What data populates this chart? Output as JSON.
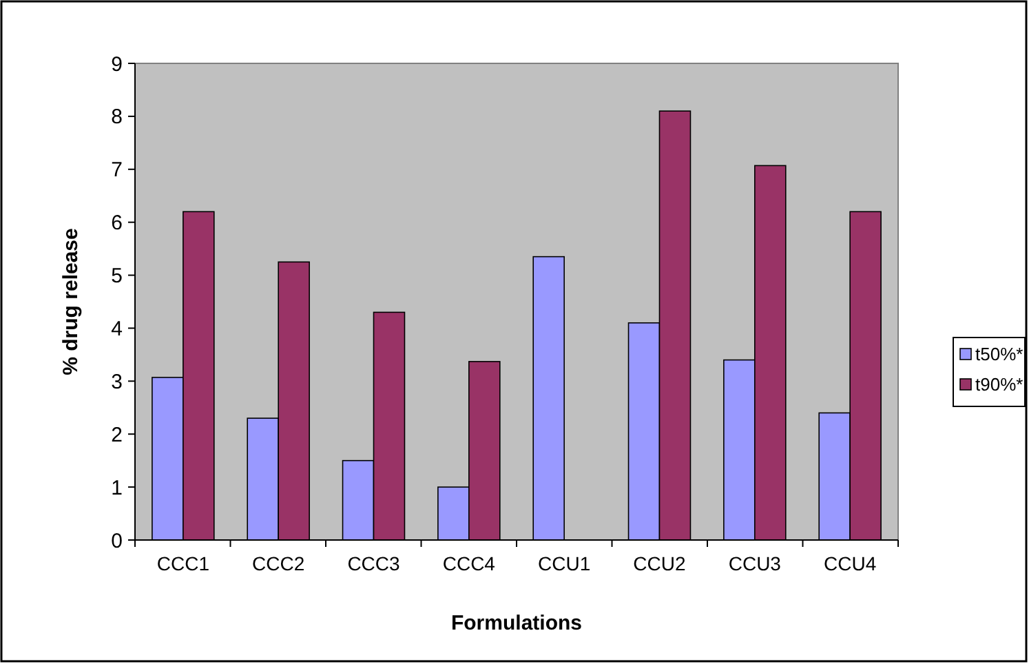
{
  "chart_data": {
    "type": "bar",
    "xlabel": "Formulations",
    "ylabel": "% drug release",
    "categories": [
      "CCC1",
      "CCC2",
      "CCC3",
      "CCC4",
      "CCU1",
      "CCU2",
      "CCU3",
      "CCU4"
    ],
    "series": [
      {
        "name": "t50%*",
        "color": "#9999ff",
        "values": [
          3.07,
          2.3,
          1.5,
          1.0,
          5.35,
          4.1,
          3.4,
          2.4
        ]
      },
      {
        "name": "t90%*",
        "color": "#993366",
        "values": [
          6.2,
          5.25,
          4.3,
          3.37,
          null,
          8.1,
          7.07,
          6.2
        ]
      }
    ],
    "ylim": [
      0,
      9
    ],
    "yticks": [
      0,
      1,
      2,
      3,
      4,
      5,
      6,
      7,
      8,
      9
    ],
    "grid": false,
    "legend": "right"
  }
}
